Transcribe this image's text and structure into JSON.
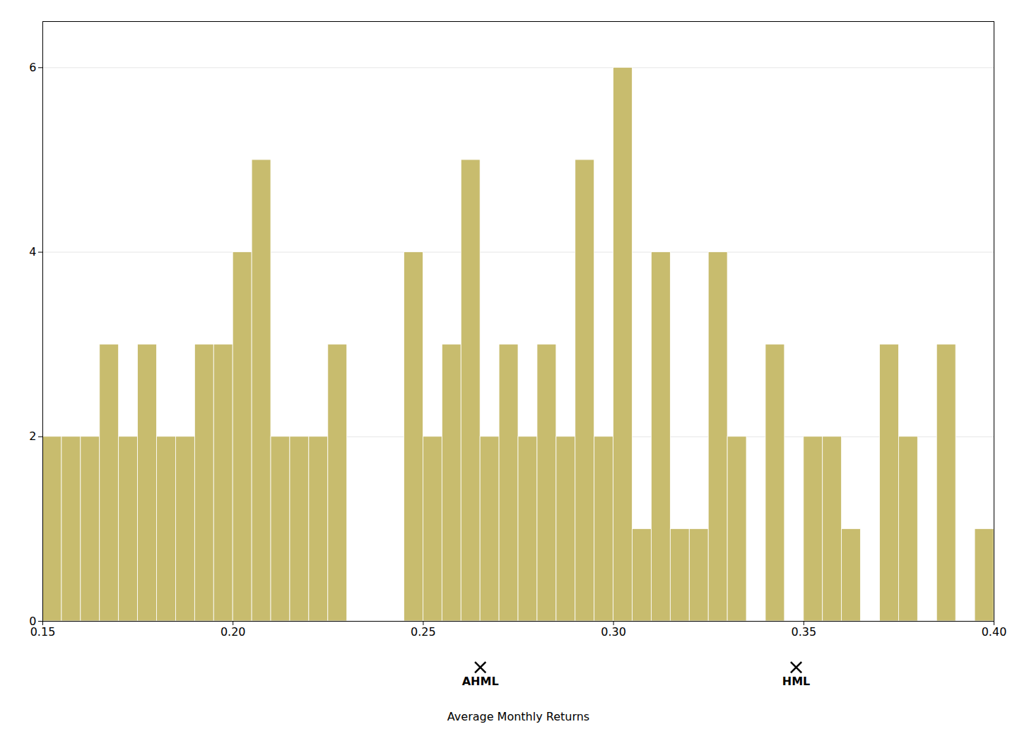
{
  "chart_data": {
    "type": "histogram",
    "xlabel": "Average Monthly Returns",
    "color": "#C8BC6E",
    "bins": [
      0.15,
      0.155,
      0.16,
      0.165,
      0.17,
      0.175,
      0.18,
      0.185,
      0.19,
      0.195,
      0.2,
      0.205,
      0.21,
      0.215,
      0.22,
      0.225,
      0.23,
      0.235,
      0.24,
      0.245,
      0.25,
      0.255,
      0.26,
      0.265,
      0.27,
      0.275,
      0.28,
      0.285,
      0.29,
      0.295,
      0.3,
      0.305,
      0.31,
      0.315,
      0.32,
      0.325,
      0.33,
      0.335,
      0.34,
      0.345,
      0.35,
      0.355,
      0.36,
      0.365,
      0.37,
      0.375,
      0.38,
      0.385,
      0.39,
      0.395,
      0.4
    ],
    "values": [
      2,
      2,
      2,
      3,
      2,
      3,
      2,
      2,
      3,
      3,
      4,
      5,
      2,
      2,
      2,
      3,
      0,
      0,
      0,
      4,
      2,
      3,
      5,
      2,
      3,
      2,
      3,
      2,
      5,
      2,
      6,
      1,
      4,
      1,
      1,
      4,
      2,
      0,
      3,
      0,
      2,
      2,
      1,
      0,
      3,
      2,
      0,
      3,
      0,
      1
    ],
    "xlim": [
      0.15,
      0.4
    ],
    "ylim": [
      0,
      6.5
    ],
    "xticks": [
      0.15,
      {
        "value": 0.2,
        "label": "0.20"
      },
      0.25,
      {
        "value": 0.3,
        "label": "0.30"
      },
      0.35,
      {
        "value": 0.4,
        "label": "0.40"
      }
    ],
    "yticks": [
      0,
      2,
      4,
      6
    ],
    "grid": true,
    "annotations": [
      {
        "text": "AHML",
        "x": 0.265,
        "y": -0.5,
        "marker": "x"
      },
      {
        "text": "HML",
        "x": 0.348,
        "y": -0.5,
        "marker": "x"
      }
    ]
  }
}
